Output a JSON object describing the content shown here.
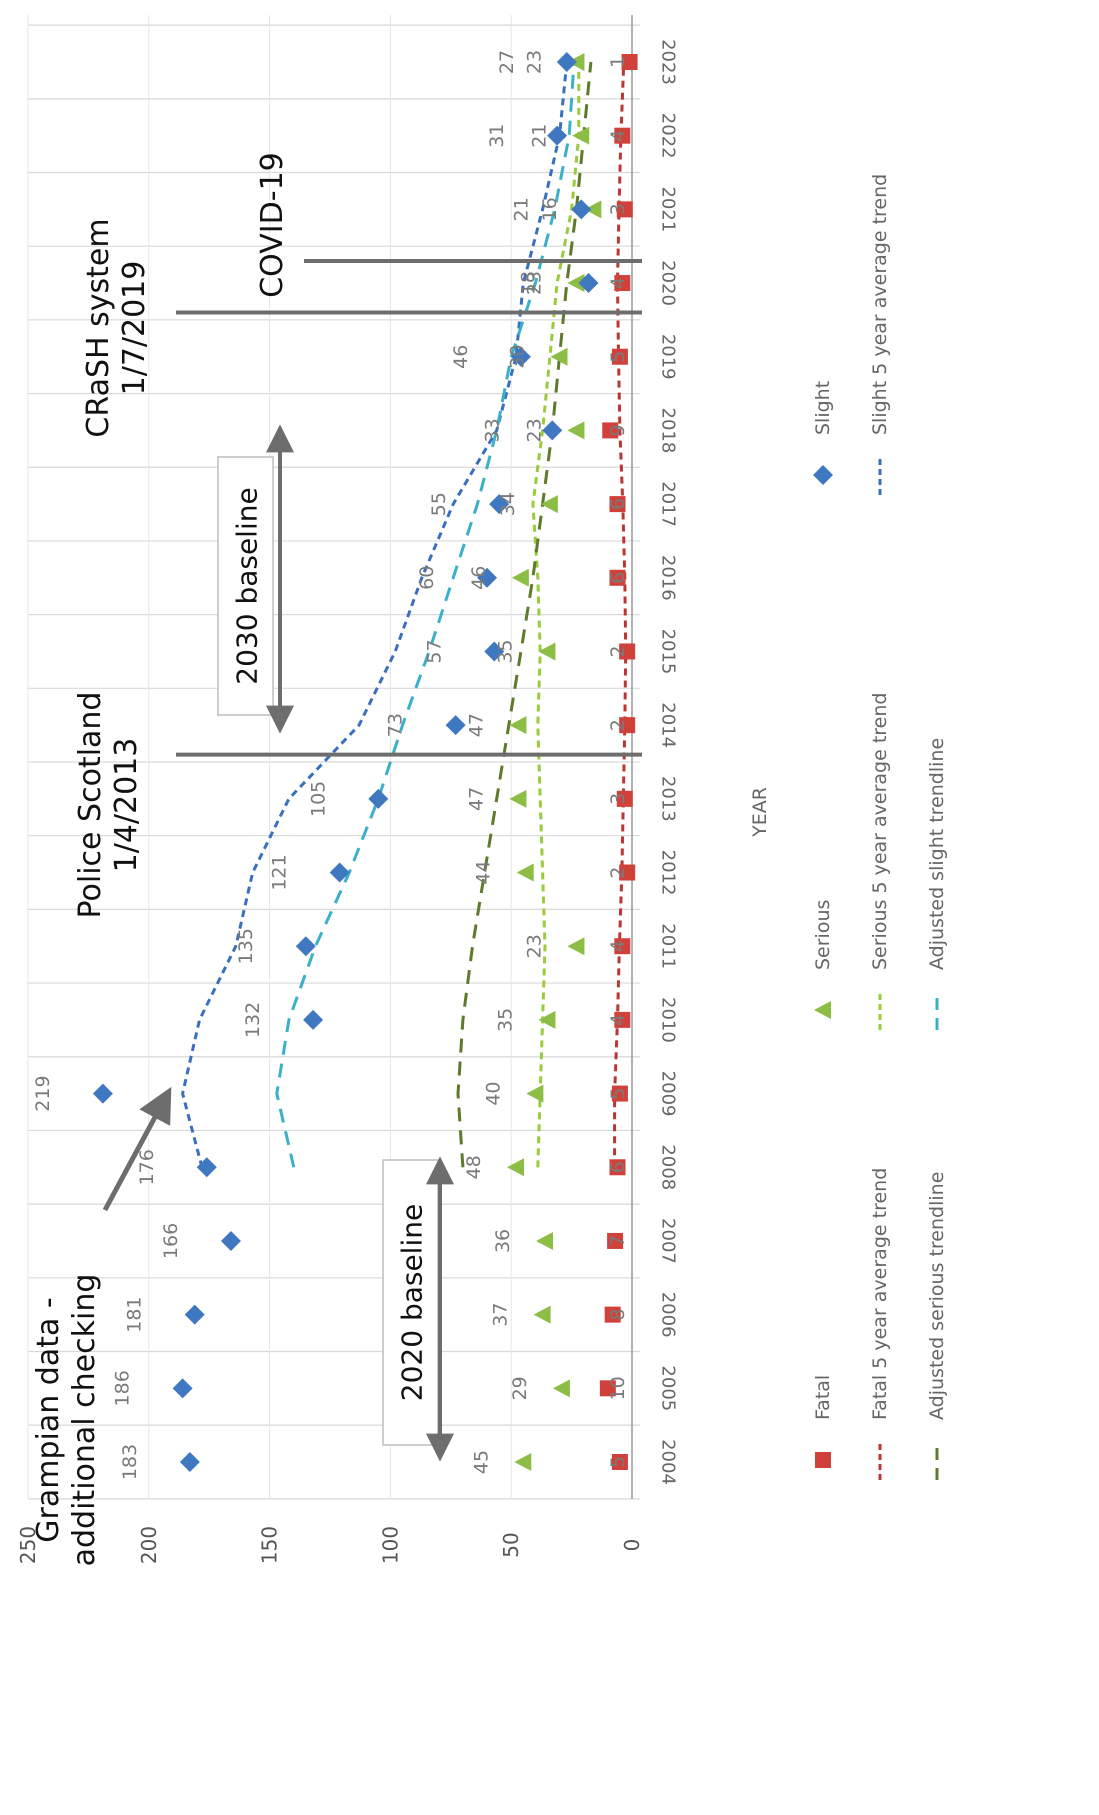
{
  "chart_data": {
    "type": "line",
    "x": [
      "2004",
      "2005",
      "2006",
      "2007",
      "2008",
      "2009",
      "2010",
      "2011",
      "2012",
      "2013",
      "2014",
      "2015",
      "2016",
      "2017",
      "2018",
      "2019",
      "2020",
      "2021",
      "2022",
      "2023"
    ],
    "xlabel": "YEAR",
    "ylabel": "",
    "ylim": [
      0,
      250
    ],
    "yticks": [
      0,
      50,
      100,
      150,
      200,
      250
    ],
    "grid": "on",
    "orientation": "rotated 90 degrees clockwise",
    "series": [
      {
        "name": "Fatal",
        "marker": "square",
        "color": "#d0413b",
        "values": [
          5,
          10,
          8,
          7,
          6,
          5,
          4,
          4,
          2,
          3,
          2,
          2,
          6,
          6,
          9,
          5,
          4,
          3,
          4,
          1
        ]
      },
      {
        "name": "Serious",
        "marker": "triangle",
        "color": "#8cbd45",
        "values": [
          45,
          29,
          37,
          36,
          48,
          40,
          35,
          23,
          44,
          47,
          47,
          35,
          46,
          34,
          23,
          30,
          23,
          16,
          21,
          23
        ]
      },
      {
        "name": "Slight",
        "marker": "diamond",
        "color": "#3f78c0",
        "values": [
          183,
          186,
          181,
          166,
          176,
          219,
          132,
          135,
          121,
          105,
          73,
          57,
          60,
          55,
          33,
          46,
          18,
          21,
          31,
          27
        ]
      },
      {
        "name": "Fatal 5 year average trend",
        "line": "dashed",
        "color": "#b93632",
        "values": [
          null,
          null,
          null,
          null,
          7.2,
          7.2,
          6.0,
          5.2,
          4.2,
          3.6,
          3.0,
          2.6,
          3.0,
          3.8,
          5.0,
          5.6,
          6.0,
          5.4,
          4.6,
          3.4
        ]
      },
      {
        "name": "Serious 5 year average trend",
        "line": "dashed",
        "color": "#9acb3c",
        "values": [
          null,
          null,
          null,
          null,
          39,
          38,
          37,
          36,
          37,
          38,
          39,
          38,
          39,
          41,
          37,
          34,
          31,
          25,
          22,
          22
        ]
      },
      {
        "name": "Slight 5 year average trend",
        "line": "dashed",
        "color": "#3a6fbf",
        "values": [
          null,
          null,
          null,
          null,
          178,
          186,
          179,
          164,
          157,
          142,
          113,
          98,
          87,
          74,
          56,
          48,
          45,
          37,
          30,
          27
        ]
      },
      {
        "name": "Adjusted serious trendline",
        "line": "dashed",
        "color": "#5f7a2c",
        "values": [
          null,
          null,
          null,
          null,
          70,
          72,
          70,
          66,
          61,
          56,
          51,
          46,
          41,
          37,
          33,
          30,
          27,
          23,
          20,
          17
        ]
      },
      {
        "name": "Adjusted slight trendline",
        "line": "dashed",
        "color": "#3bb0cb",
        "values": [
          null,
          null,
          null,
          null,
          140,
          147,
          142,
          131,
          117,
          105,
          95,
          84,
          74,
          64,
          56,
          50,
          40,
          32,
          26,
          24
        ]
      }
    ],
    "annotations": [
      {
        "text": "Grampian data -\nadditional checking",
        "type": "arrow"
      },
      {
        "text": "2020 baseline",
        "type": "double-arrow",
        "from_year": "2004",
        "to_year": "2008"
      },
      {
        "text": "Police Scotland\n1/4/2013",
        "type": "vertical-line",
        "at": 9.6
      },
      {
        "text": "2030 baseline",
        "type": "double-arrow",
        "from_year": "2014",
        "to_year": "2018"
      },
      {
        "text": "CRaSH system\n1/7/2019",
        "type": "vertical-line",
        "at": 15.6
      },
      {
        "text": "COVID-19",
        "type": "vertical-line",
        "at": 16.3
      }
    ],
    "legend_position": "bottom"
  }
}
